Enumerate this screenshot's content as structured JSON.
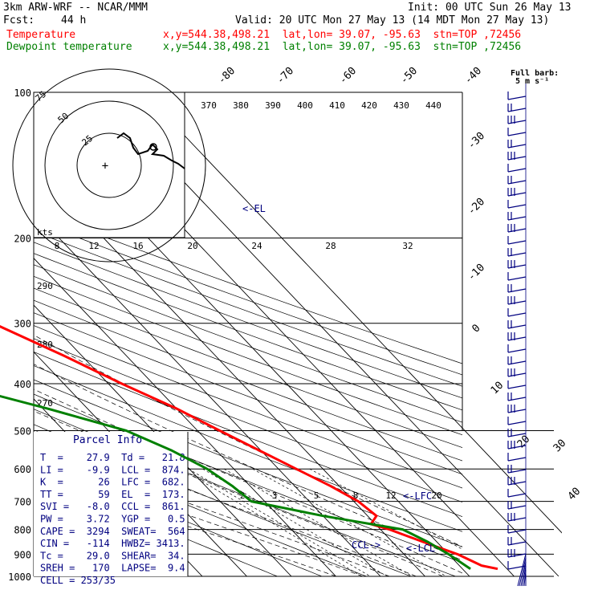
{
  "header": {
    "model": "3km ARW-WRF -- NCAR/MMM",
    "init": "Init: 00 UTC Sun 26 May 13",
    "fcst_label": "Fcst:",
    "fcst_hours": "44 h",
    "valid": "Valid: 20 UTC Mon 27 May 13 (14 MDT Mon 27 May 13)",
    "temp_label": "Temperature",
    "temp_loc": "x,y=544.38,498.21  lat,lon= 39.07, -95.63  stn=TOP ,72456",
    "dew_label": "Dewpoint temperature",
    "dew_loc": "x,y=544.38,498.21  lat,lon= 39.07, -95.63  stn=TOP ,72456"
  },
  "colors": {
    "temperature": "#ff0000",
    "dewpoint": "#008000",
    "parcel": "#000080",
    "hodograph": "#000000"
  },
  "chart_data": {
    "type": "line",
    "title": "Skew-T log-P sounding",
    "ylabel": "Pressure (hPa)",
    "pressure_levels": [
      100,
      200,
      300,
      400,
      500,
      600,
      700,
      800,
      900,
      1000
    ],
    "pressure_labels": [
      "100",
      "200",
      "300",
      "400",
      "500",
      "600",
      "700",
      "800",
      "900",
      "1000"
    ],
    "skewed_isotherm_labels": [
      "-80",
      "-70",
      "-60",
      "-50",
      "-40",
      "-30",
      "-20",
      "-10",
      "0",
      "10",
      "20",
      "30",
      "40"
    ],
    "theta_labels": [
      "370",
      "380",
      "390",
      "400",
      "410",
      "420",
      "430",
      "440"
    ],
    "mixing_ratio_labels": [
      "2",
      "3",
      "5",
      "8",
      "12",
      "20"
    ],
    "dry_adiabat_labels": [
      "290",
      "280",
      "270"
    ],
    "hodo_speed_labels": [
      "8",
      "12",
      "16",
      "20",
      "24",
      "28",
      "32"
    ],
    "hodo_ring_labels": [
      "75",
      "50",
      "25"
    ],
    "hodo_units": "kts",
    "series": [
      {
        "name": "Temperature",
        "color": "#ff0000",
        "points": [
          [
            100,
            -72.0
          ],
          [
            110,
            -65.0
          ],
          [
            125,
            -62.0
          ],
          [
            140,
            -57.0
          ],
          [
            150,
            -56.0
          ],
          [
            165,
            -58.0
          ],
          [
            180,
            -59.0
          ],
          [
            190,
            -57.0
          ],
          [
            200,
            -55.0
          ],
          [
            250,
            -44.0
          ],
          [
            300,
            -33.0
          ],
          [
            350,
            -24.0
          ],
          [
            400,
            -17.0
          ],
          [
            450,
            -10.0
          ],
          [
            500,
            -5.0
          ],
          [
            600,
            4.0
          ],
          [
            650,
            8.0
          ],
          [
            700,
            11.0
          ],
          [
            750,
            12.0
          ],
          [
            780,
            9.0
          ],
          [
            800,
            12.0
          ],
          [
            850,
            17.0
          ],
          [
            900,
            22.0
          ],
          [
            950,
            25.0
          ],
          [
            965,
            27.9
          ]
        ]
      },
      {
        "name": "Dewpoint temperature",
        "color": "#008000",
        "points": [
          [
            100,
            -84.0
          ],
          [
            120,
            -82.0
          ],
          [
            140,
            -80.0
          ],
          [
            160,
            -81.0
          ],
          [
            180,
            -80.0
          ],
          [
            200,
            -78.0
          ],
          [
            250,
            -74.0
          ],
          [
            300,
            -68.0
          ],
          [
            350,
            -63.0
          ],
          [
            400,
            -55.0
          ],
          [
            450,
            -39.0
          ],
          [
            500,
            -26.0
          ],
          [
            550,
            -20.0
          ],
          [
            600,
            -16.0
          ],
          [
            650,
            -14.0
          ],
          [
            700,
            -13.0
          ],
          [
            750,
            0.0
          ],
          [
            800,
            15.0
          ],
          [
            850,
            18.0
          ],
          [
            900,
            20.0
          ],
          [
            965,
            21.8
          ]
        ]
      }
    ],
    "annotations": [
      "<-EL",
      "<-LFC",
      "<-LCL",
      "CCL->"
    ]
  },
  "parcel_info": {
    "title": "Parcel Info",
    "rows": [
      "T  =    27.9  Td =   21.8",
      "LI =    -9.9  LCL =  874.",
      "K  =      26  LFC =  682.",
      "TT =      59  EL  =  173.",
      "SVI =   -8.0  CCL =  861.",
      "PW =    3.72  YGP =   0.5",
      "CAPE =  3294  SWEAT=  564",
      "CIN =   -114  HWBZ= 3413.",
      "Tc =    29.0  SHEAR=  34.",
      "SREH =   170  LAPSE=  9.4",
      "CELL = 253/35"
    ]
  },
  "barb_legend": {
    "title": "Full barb:",
    "value": "5 m s⁻¹"
  }
}
